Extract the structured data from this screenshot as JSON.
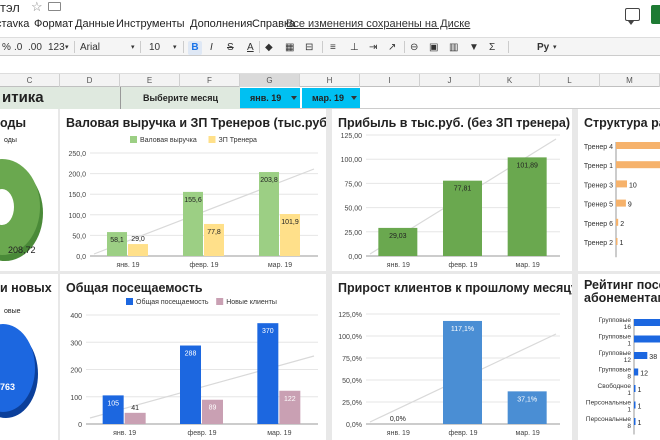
{
  "window": {
    "title_fragment": "тэл",
    "menu": [
      "стavка",
      "Формат",
      "Данные",
      "Инструменты",
      "Дополнения",
      "Справка"
    ],
    "saved_status": "Все изменения сохранены на Диске"
  },
  "toolbar": {
    "percent": "%",
    "decimals_decrease": ".0",
    "decimals_increase": ".00",
    "number_format": "123",
    "font": "Arial",
    "size": "10",
    "bold": "B",
    "italic": "I",
    "strike": "S",
    "text_color": "A",
    "input_tools": "Py"
  },
  "sheet": {
    "columns": [
      "C",
      "D",
      "E",
      "F",
      "G",
      "H",
      "I",
      "J",
      "K",
      "L",
      "M"
    ],
    "dashboard_title": "итика",
    "select_month_label": "Выберите месяц",
    "month_from": "янв. 19",
    "month_to": "мар. 19"
  },
  "panels": {
    "left_top_title": "оды",
    "left_top_legend": "оды",
    "left_top_value": "208,72",
    "left_bottom_title": "и новых",
    "left_bottom_legend": "овые",
    "left_bottom_value": "763",
    "revenue_title": "Валовая выручка и ЗП Тренеров (тыс.руб.)",
    "profit_title": "Прибыль в тыс.руб. (без ЗП тренера)",
    "structure_title": "Структура ра",
    "attendance_title": "Общая посещаемость",
    "growth_title": "Прирост клиентов к прошлому месяцу",
    "rating_title_1": "Рейтинг посе",
    "rating_title_2": "абонементам"
  },
  "colors": {
    "green_light": "#9ccf84",
    "green_dark": "#6aa84f",
    "yellow": "#ffe08a",
    "blue": "#1c67e0",
    "pink": "#c9a0b3",
    "growth_blue": "#4a8ed4",
    "orange": "#f6b26b",
    "trend": "#d9d9d9"
  },
  "chart_data": [
    {
      "id": "revenue",
      "type": "bar",
      "title": "Валовая выручка и ЗП Тренеров (тыс.руб.)",
      "categories": [
        "янв. 19",
        "февр. 19",
        "мар. 19"
      ],
      "series": [
        {
          "name": "Валовая выручка",
          "values": [
            58.1,
            155.6,
            203.8
          ],
          "labels": [
            "58,1",
            "155,6",
            "203,8"
          ]
        },
        {
          "name": "ЗП Тренера",
          "values": [
            29.0,
            77.8,
            101.9
          ],
          "labels": [
            "29,0",
            "77,8",
            "101,9"
          ]
        }
      ],
      "yticks": [
        "0,0",
        "50,0",
        "100,0",
        "150,0",
        "200,0",
        "250,0"
      ],
      "ylim": [
        0,
        250
      ],
      "legend": "top",
      "grid": true
    },
    {
      "id": "profit",
      "type": "bar",
      "title": "Прибыль в тыс.руб. (без ЗП тренера)",
      "categories": [
        "янв. 19",
        "февр. 19",
        "мар. 19"
      ],
      "series": [
        {
          "values": [
            29.03,
            77.81,
            101.89
          ],
          "labels": [
            "29,03",
            "77,81",
            "101,89"
          ]
        }
      ],
      "yticks": [
        "0,00",
        "25,00",
        "50,00",
        "75,00",
        "100,00",
        "125,00"
      ],
      "ylim": [
        0,
        125
      ],
      "grid": true
    },
    {
      "id": "attendance",
      "type": "bar",
      "title": "Общая посещаемость",
      "categories": [
        "янв. 19",
        "февр. 19",
        "мар. 19"
      ],
      "series": [
        {
          "name": "Общая посещаемость",
          "values": [
            105,
            288,
            370
          ],
          "labels": [
            "105",
            "288",
            "370"
          ]
        },
        {
          "name": "Новые клиенты",
          "values": [
            41,
            89,
            122
          ],
          "labels": [
            "41",
            "89",
            "122"
          ]
        }
      ],
      "yticks": [
        "0",
        "100",
        "200",
        "300",
        "400"
      ],
      "ylim": [
        0,
        400
      ],
      "legend": "top",
      "grid": true
    },
    {
      "id": "growth",
      "type": "bar",
      "title": "Прирост клиентов к прошлому месяцу",
      "categories": [
        "янв. 19",
        "февр. 19",
        "мар. 19"
      ],
      "series": [
        {
          "values": [
            0.0,
            117.1,
            37.1
          ],
          "labels": [
            "0,0%",
            "117,1%",
            "37,1%"
          ]
        }
      ],
      "yticks": [
        "0,0%",
        "25,0%",
        "50,0%",
        "75,0%",
        "100,0%",
        "125,0%"
      ],
      "ylim": [
        0,
        125
      ],
      "grid": true
    },
    {
      "id": "structure",
      "type": "bar",
      "orientation": "horizontal",
      "title": "Структура ра",
      "categories": [
        "Тренер 4",
        "Тренер 1",
        "Тренер 3",
        "Тренер 5",
        "Тренер 6",
        "Тренер 2"
      ],
      "series": [
        {
          "values": [
            null,
            null,
            10,
            9,
            2,
            1
          ],
          "labels": [
            "",
            "",
            "10",
            "9",
            "2",
            "1"
          ]
        }
      ]
    },
    {
      "id": "rating",
      "type": "bar",
      "orientation": "horizontal",
      "title": "Рейтинг посе абонементам",
      "categories": [
        "Групповые 16",
        "Групповые 1",
        "Групповые 12",
        "Групповые 8",
        "Свободное 1",
        "Персональные 1",
        "Персональные 8"
      ],
      "series": [
        {
          "values": [
            null,
            null,
            38,
            12,
            1,
            1,
            1
          ],
          "labels": [
            "",
            "",
            "38",
            "12",
            "1",
            "1",
            "1"
          ]
        }
      ]
    }
  ]
}
